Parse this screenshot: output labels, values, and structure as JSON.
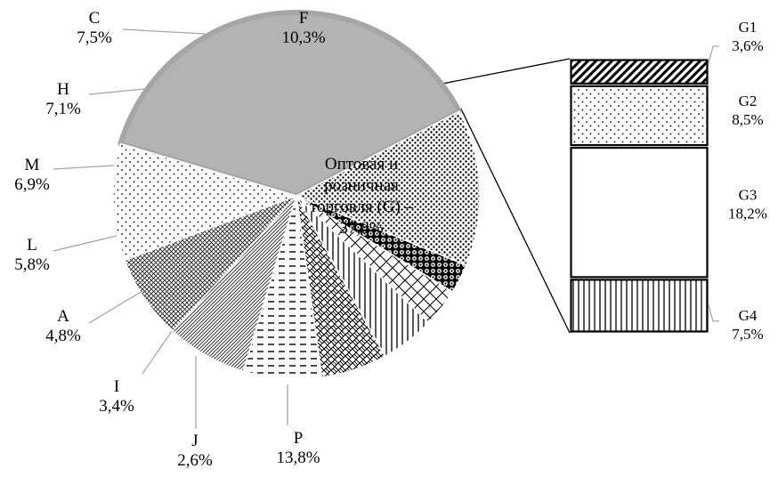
{
  "chart_data": {
    "type": "pie",
    "subtype": "pie-of-bar",
    "slices": [
      {
        "label": "G",
        "value": 37.8,
        "value_label": "37,8%",
        "text_lines": [
          "Оптовая и",
          "розничная",
          "торговля (G) –",
          "37,8%"
        ],
        "fill": "#b3b3b3",
        "pattern": "solid"
      },
      {
        "label": "P",
        "value": 13.8,
        "value_label": "13,8%",
        "pattern": "dense-dots"
      },
      {
        "label": "J",
        "value": 2.6,
        "value_label": "2,6%",
        "pattern": "beads"
      },
      {
        "label": "I",
        "value": 3.4,
        "value_label": "3,4%",
        "pattern": "diagonal-grid"
      },
      {
        "label": "A",
        "value": 4.8,
        "value_label": "4,8%",
        "pattern": "vertical-lines"
      },
      {
        "label": "L",
        "value": 5.8,
        "value_label": "5,8%",
        "pattern": "weave"
      },
      {
        "label": "M",
        "value": 6.9,
        "value_label": "6,9%",
        "pattern": "dashes"
      },
      {
        "label": "H",
        "value": 7.1,
        "value_label": "7,1%",
        "pattern": "diagonal-stripes"
      },
      {
        "label": "C",
        "value": 7.5,
        "value_label": "7,5%",
        "pattern": "crosshatch"
      },
      {
        "label": "F",
        "value": 10.3,
        "value_label": "10,3%",
        "pattern": "sparse-dots"
      }
    ],
    "breakdown": {
      "parent": "G",
      "items": [
        {
          "label": "G1",
          "value": 3.6,
          "value_label": "3,6%",
          "pattern": "diagonal-stripes-bold"
        },
        {
          "label": "G2",
          "value": 8.5,
          "value_label": "8,5%",
          "pattern": "sparse-dots"
        },
        {
          "label": "G3",
          "value": 18.2,
          "value_label": "18,2%",
          "pattern": "none"
        },
        {
          "label": "G4",
          "value": 7.5,
          "value_label": "7,5%",
          "pattern": "vertical-lines"
        }
      ]
    }
  }
}
